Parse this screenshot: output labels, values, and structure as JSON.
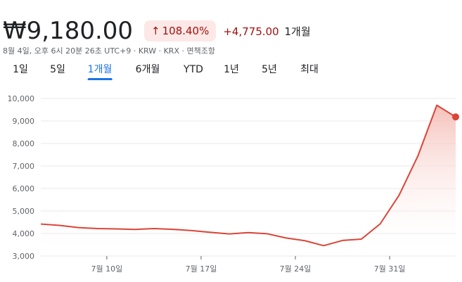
{
  "quote": {
    "price": "₩9,180.00",
    "change_percent": "108.40%",
    "change_arrow": "↑",
    "change_amount": "+4,775.00",
    "period": "1개월",
    "meta": "8월 4일, 오후 6시 20분 26초 UTC+9 · KRW · KRX · 면책조항"
  },
  "tabs": [
    {
      "label": "1일",
      "active": false
    },
    {
      "label": "5일",
      "active": false
    },
    {
      "label": "1개월",
      "active": true
    },
    {
      "label": "6개월",
      "active": false
    },
    {
      "label": "YTD",
      "active": false
    },
    {
      "label": "1년",
      "active": false
    },
    {
      "label": "5년",
      "active": false
    },
    {
      "label": "최대",
      "active": false
    }
  ],
  "colors": {
    "line": "#db4437",
    "fill_top": "#f4b6ae",
    "grid": "#e8eaed",
    "axis": "#5f6368"
  },
  "chart_data": {
    "type": "area",
    "ylim": [
      3000,
      10000
    ],
    "y_ticks": [
      "10,000",
      "9,000",
      "8,000",
      "7,000",
      "6,000",
      "5,000",
      "4,000",
      "3,000"
    ],
    "y_tick_values": [
      10000,
      9000,
      8000,
      7000,
      6000,
      5000,
      4000,
      3000
    ],
    "x_ticks": [
      "7월 10일",
      "7월 17일",
      "7월 24일",
      "7월 31일"
    ],
    "x_tick_index": [
      3.5,
      8.5,
      13.5,
      18.5
    ],
    "grid": "horizontal",
    "series": [
      {
        "values": [
          4420,
          4360,
          4260,
          4220,
          4205,
          4180,
          4220,
          4185,
          4130,
          4050,
          3980,
          4040,
          3990,
          3800,
          3680,
          3460,
          3690,
          3750,
          4430,
          5700,
          7450,
          9700,
          9180
        ]
      }
    ],
    "last_point_marker": true
  }
}
